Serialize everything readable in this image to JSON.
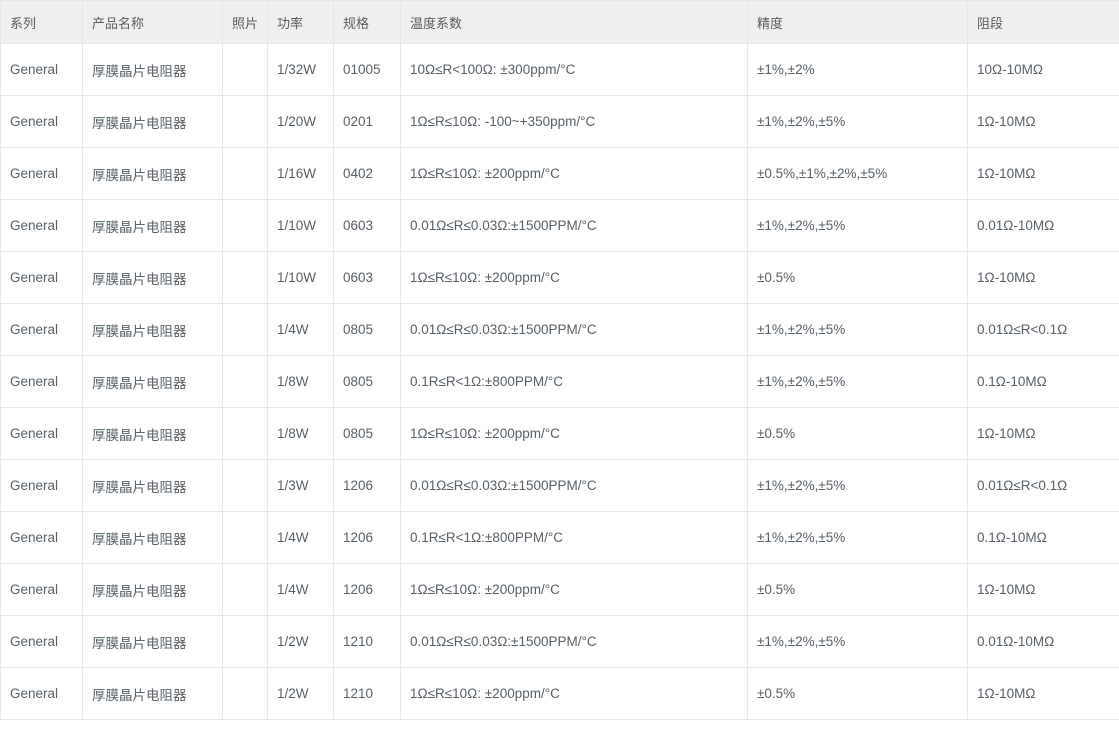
{
  "table": {
    "columns": [
      {
        "key": "series",
        "label": "系列"
      },
      {
        "key": "product",
        "label": "产品名称"
      },
      {
        "key": "photo",
        "label": "照片"
      },
      {
        "key": "power",
        "label": "功率"
      },
      {
        "key": "spec",
        "label": "规格"
      },
      {
        "key": "temp",
        "label": "温度系数"
      },
      {
        "key": "precision",
        "label": "精度"
      },
      {
        "key": "range",
        "label": "阻段"
      }
    ],
    "rows": [
      {
        "series": "General",
        "product": "厚膜晶片电阻器",
        "photo": "",
        "power": "1/32W",
        "spec": "01005",
        "temp": "10Ω≤R<100Ω: ±300ppm/°C",
        "precision": "±1%,±2%",
        "range": "10Ω-10MΩ"
      },
      {
        "series": "General",
        "product": "厚膜晶片电阻器",
        "photo": "",
        "power": "1/20W",
        "spec": "0201",
        "temp": "1Ω≤R≤10Ω: -100~+350ppm/°C",
        "precision": "±1%,±2%,±5%",
        "range": "1Ω-10MΩ"
      },
      {
        "series": "General",
        "product": "厚膜晶片电阻器",
        "photo": "",
        "power": "1/16W",
        "spec": "0402",
        "temp": "1Ω≤R≤10Ω: ±200ppm/°C",
        "precision": "±0.5%,±1%,±2%,±5%",
        "range": "1Ω-10MΩ"
      },
      {
        "series": "General",
        "product": "厚膜晶片电阻器",
        "photo": "",
        "power": "1/10W",
        "spec": "0603",
        "temp": "0.01Ω≤R≤0.03Ω:±1500PPM/°C",
        "precision": "±1%,±2%,±5%",
        "range": "0.01Ω-10MΩ"
      },
      {
        "series": "General",
        "product": "厚膜晶片电阻器",
        "photo": "",
        "power": "1/10W",
        "spec": "0603",
        "temp": "1Ω≤R≤10Ω: ±200ppm/°C",
        "precision": "±0.5%",
        "range": "1Ω-10MΩ"
      },
      {
        "series": "General",
        "product": "厚膜晶片电阻器",
        "photo": "",
        "power": "1/4W",
        "spec": "0805",
        "temp": "0.01Ω≤R≤0.03Ω:±1500PPM/°C",
        "precision": "±1%,±2%,±5%",
        "range": "0.01Ω≤R<0.1Ω"
      },
      {
        "series": "General",
        "product": "厚膜晶片电阻器",
        "photo": "",
        "power": "1/8W",
        "spec": "0805",
        "temp": "0.1R≤R<1Ω:±800PPM/°C",
        "precision": "±1%,±2%,±5%",
        "range": "0.1Ω-10MΩ"
      },
      {
        "series": "General",
        "product": "厚膜晶片电阻器",
        "photo": "",
        "power": "1/8W",
        "spec": "0805",
        "temp": "1Ω≤R≤10Ω: ±200ppm/°C",
        "precision": "±0.5%",
        "range": "1Ω-10MΩ"
      },
      {
        "series": "General",
        "product": "厚膜晶片电阻器",
        "photo": "",
        "power": "1/3W",
        "spec": "1206",
        "temp": "0.01Ω≤R≤0.03Ω:±1500PPM/°C",
        "precision": "±1%,±2%,±5%",
        "range": "0.01Ω≤R<0.1Ω"
      },
      {
        "series": "General",
        "product": "厚膜晶片电阻器",
        "photo": "",
        "power": "1/4W",
        "spec": "1206",
        "temp": "0.1R≤R<1Ω:±800PPM/°C",
        "precision": "±1%,±2%,±5%",
        "range": "0.1Ω-10MΩ"
      },
      {
        "series": "General",
        "product": "厚膜晶片电阻器",
        "photo": "",
        "power": "1/4W",
        "spec": "1206",
        "temp": "1Ω≤R≤10Ω: ±200ppm/°C",
        "precision": "±0.5%",
        "range": "1Ω-10MΩ"
      },
      {
        "series": "General",
        "product": "厚膜晶片电阻器",
        "photo": "",
        "power": "1/2W",
        "spec": "1210",
        "temp": "0.01Ω≤R≤0.03Ω:±1500PPM/°C",
        "precision": "±1%,±2%,±5%",
        "range": "0.01Ω-10MΩ"
      },
      {
        "series": "General",
        "product": "厚膜晶片电阻器",
        "photo": "",
        "power": "1/2W",
        "spec": "1210",
        "temp": "1Ω≤R≤10Ω: ±200ppm/°C",
        "precision": "±0.5%",
        "range": "1Ω-10MΩ"
      }
    ],
    "colors": {
      "header_background": "#f0efed",
      "border": "#e8e7e5",
      "text": "#566069",
      "row_background": "#ffffff"
    }
  }
}
